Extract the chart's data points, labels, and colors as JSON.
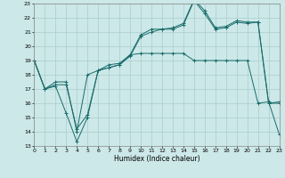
{
  "xlabel": "Humidex (Indice chaleur)",
  "bg_color": "#cce8e8",
  "grid_color": "#aacece",
  "line_color": "#1a6b6b",
  "xlim": [
    0,
    23
  ],
  "ylim": [
    13,
    23
  ],
  "xticks": [
    0,
    1,
    2,
    3,
    4,
    5,
    6,
    7,
    8,
    9,
    10,
    11,
    12,
    13,
    14,
    15,
    16,
    17,
    18,
    19,
    20,
    21,
    22,
    23
  ],
  "yticks": [
    13,
    14,
    15,
    16,
    17,
    18,
    19,
    20,
    21,
    22,
    23
  ],
  "line1_x": [
    0,
    1,
    2,
    3,
    4,
    5,
    6,
    7,
    8,
    9,
    10,
    11,
    12,
    13,
    14,
    15,
    16,
    17,
    18,
    19,
    20,
    21,
    22,
    23
  ],
  "line1_y": [
    19,
    17,
    17.2,
    15.3,
    13.3,
    15.0,
    18.3,
    18.5,
    18.7,
    19.4,
    19.5,
    19.5,
    19.5,
    19.5,
    19.5,
    19.0,
    19.0,
    19.0,
    19.0,
    19.0,
    19.0,
    16.0,
    16.1,
    13.8
  ],
  "line2_x": [
    0,
    1,
    2,
    3,
    4,
    5,
    6,
    7,
    8,
    9,
    10,
    11,
    12,
    13,
    14,
    15,
    16,
    17,
    18,
    19,
    20,
    21,
    22,
    23
  ],
  "line2_y": [
    19,
    17,
    17.5,
    17.5,
    14.0,
    18.0,
    18.3,
    18.7,
    18.8,
    19.4,
    20.8,
    21.2,
    21.2,
    21.3,
    21.6,
    23.3,
    22.5,
    21.3,
    21.4,
    21.8,
    21.7,
    21.7,
    16.0,
    16.1
  ],
  "line3_x": [
    0,
    1,
    2,
    3,
    4,
    5,
    6,
    7,
    8,
    9,
    10,
    11,
    12,
    13,
    14,
    15,
    16,
    17,
    18,
    19,
    20,
    21,
    22,
    23
  ],
  "line3_y": [
    19,
    17,
    17.3,
    17.3,
    14.2,
    15.2,
    18.3,
    18.5,
    18.7,
    19.3,
    20.7,
    21.0,
    21.2,
    21.2,
    21.5,
    23.2,
    22.3,
    21.2,
    21.3,
    21.7,
    21.6,
    21.7,
    16.0,
    16.0
  ]
}
